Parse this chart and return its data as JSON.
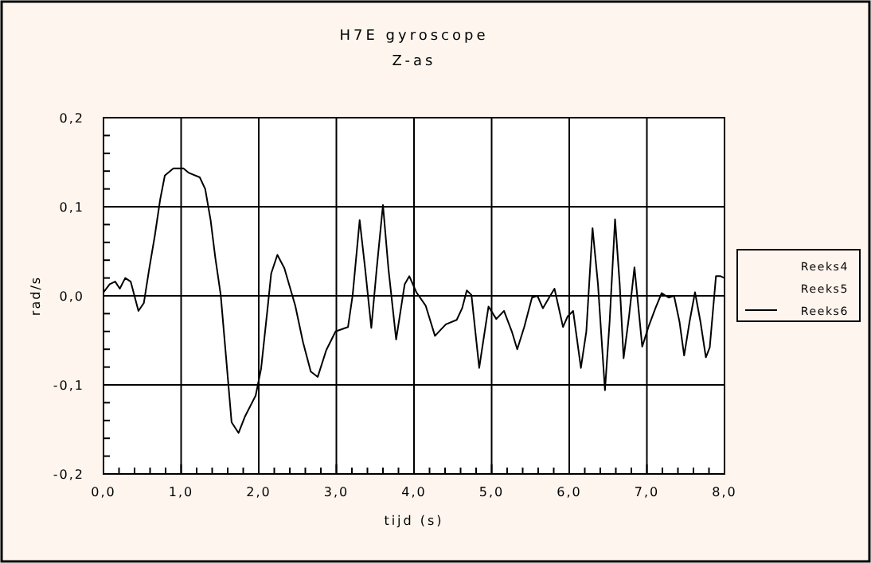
{
  "chart_data": {
    "type": "line",
    "title": "H7E gyroscope",
    "subtitle": "Z-as",
    "xlabel": "tijd (s)",
    "ylabel": "rad/s",
    "xlim": [
      0,
      8
    ],
    "ylim": [
      -0.2,
      0.2
    ],
    "xticks": [
      {
        "value": 0,
        "label": "0,0"
      },
      {
        "value": 0.2,
        "label": null
      },
      {
        "value": 0.4,
        "label": null
      },
      {
        "value": 0.6,
        "label": null
      },
      {
        "value": 0.8,
        "label": null
      },
      {
        "value": 1,
        "label": "1,0"
      },
      {
        "value": 1.2,
        "label": null
      },
      {
        "value": 1.4,
        "label": null
      },
      {
        "value": 1.6,
        "label": null
      },
      {
        "value": 1.8,
        "label": null
      },
      {
        "value": 2,
        "label": "2,0"
      },
      {
        "value": 2.2,
        "label": null
      },
      {
        "value": 2.4,
        "label": null
      },
      {
        "value": 2.6,
        "label": null
      },
      {
        "value": 2.8,
        "label": null
      },
      {
        "value": 3,
        "label": "3,0"
      },
      {
        "value": 3.2,
        "label": null
      },
      {
        "value": 3.4,
        "label": null
      },
      {
        "value": 3.6,
        "label": null
      },
      {
        "value": 3.8,
        "label": null
      },
      {
        "value": 4,
        "label": "4,0"
      },
      {
        "value": 4.2,
        "label": null
      },
      {
        "value": 4.4,
        "label": null
      },
      {
        "value": 4.6,
        "label": null
      },
      {
        "value": 4.8,
        "label": null
      },
      {
        "value": 5,
        "label": "5,0"
      },
      {
        "value": 5.2,
        "label": null
      },
      {
        "value": 5.4,
        "label": null
      },
      {
        "value": 5.6,
        "label": null
      },
      {
        "value": 5.8,
        "label": null
      },
      {
        "value": 6,
        "label": "6,0"
      },
      {
        "value": 6.2,
        "label": null
      },
      {
        "value": 6.4,
        "label": null
      },
      {
        "value": 6.6,
        "label": null
      },
      {
        "value": 6.8,
        "label": null
      },
      {
        "value": 7,
        "label": "7,0"
      },
      {
        "value": 7.2,
        "label": null
      },
      {
        "value": 7.4,
        "label": null
      },
      {
        "value": 7.6,
        "label": null
      },
      {
        "value": 7.8,
        "label": null
      },
      {
        "value": 8,
        "label": "8,0"
      }
    ],
    "yticks": [
      {
        "value": -0.2,
        "label": "-0,2"
      },
      {
        "value": -0.18,
        "label": null
      },
      {
        "value": -0.16,
        "label": null
      },
      {
        "value": -0.14,
        "label": null
      },
      {
        "value": -0.12,
        "label": null
      },
      {
        "value": -0.1,
        "label": "-0,1"
      },
      {
        "value": -0.08,
        "label": null
      },
      {
        "value": -0.06,
        "label": null
      },
      {
        "value": -0.04,
        "label": null
      },
      {
        "value": -0.02,
        "label": null
      },
      {
        "value": 0,
        "label": "0,0"
      },
      {
        "value": 0.02,
        "label": null
      },
      {
        "value": 0.04,
        "label": null
      },
      {
        "value": 0.06,
        "label": null
      },
      {
        "value": 0.08,
        "label": null
      },
      {
        "value": 0.1,
        "label": "0,1"
      },
      {
        "value": 0.12,
        "label": null
      },
      {
        "value": 0.14,
        "label": null
      },
      {
        "value": 0.16,
        "label": null
      },
      {
        "value": 0.18,
        "label": null
      },
      {
        "value": 0.2,
        "label": "0,2"
      }
    ],
    "grid": true,
    "legend": "right",
    "line_style": "solid",
    "series": [
      {
        "name": "Reeks4",
        "color": null
      },
      {
        "name": "Reeks5",
        "color": null
      },
      {
        "name": "Reeks6",
        "color": "#000000",
        "x": [
          0,
          0.08,
          0.15,
          0.21,
          0.28,
          0.35,
          0.45,
          0.52,
          0.59,
          0.66,
          0.73,
          0.79,
          0.9,
          1.03,
          1.1,
          1.24,
          1.31,
          1.38,
          1.44,
          1.51,
          1.58,
          1.65,
          1.74,
          1.82,
          1.96,
          2.03,
          2.11,
          2.16,
          2.24,
          2.33,
          2.47,
          2.57,
          2.67,
          2.76,
          2.87,
          2.99,
          3.15,
          3.21,
          3.3,
          3.37,
          3.45,
          3.52,
          3.6,
          3.67,
          3.77,
          3.88,
          3.94,
          4.03,
          4.15,
          4.27,
          4.41,
          4.55,
          4.62,
          4.68,
          4.74,
          4.84,
          4.89,
          4.96,
          5.06,
          5.16,
          5.26,
          5.33,
          5.42,
          5.52,
          5.59,
          5.66,
          5.74,
          5.81,
          5.92,
          5.98,
          6.05,
          6.15,
          6.22,
          6.3,
          6.37,
          6.46,
          6.52,
          6.59,
          6.65,
          6.7,
          6.77,
          6.84,
          6.94,
          7.02,
          7.11,
          7.19,
          7.28,
          7.35,
          7.42,
          7.48,
          7.55,
          7.62,
          7.69,
          7.76,
          7.81,
          7.89,
          7.95,
          8
        ],
        "values": [
          0.004,
          0.013,
          0.016,
          0.008,
          0.02,
          0.016,
          -0.017,
          -0.008,
          0.031,
          0.067,
          0.108,
          0.135,
          0.143,
          0.143,
          0.138,
          0.133,
          0.12,
          0.085,
          0.043,
          0.001,
          -0.07,
          -0.142,
          -0.154,
          -0.136,
          -0.112,
          -0.082,
          -0.017,
          0.025,
          0.046,
          0.031,
          -0.011,
          -0.052,
          -0.085,
          -0.091,
          -0.061,
          -0.04,
          -0.035,
          0.001,
          0.085,
          0.031,
          -0.036,
          0.031,
          0.102,
          0.031,
          -0.049,
          0.013,
          0.022,
          0.004,
          -0.011,
          -0.045,
          -0.032,
          -0.027,
          -0.014,
          0.006,
          0.001,
          -0.081,
          -0.052,
          -0.012,
          -0.026,
          -0.017,
          -0.04,
          -0.06,
          -0.035,
          -0.002,
          0,
          -0.014,
          -0.002,
          0.008,
          -0.035,
          -0.023,
          -0.017,
          -0.081,
          -0.04,
          0.076,
          0.013,
          -0.106,
          -0.029,
          0.086,
          0.013,
          -0.07,
          -0.023,
          0.032,
          -0.057,
          -0.035,
          -0.014,
          0.003,
          -0.002,
          0,
          -0.029,
          -0.067,
          -0.029,
          0.004,
          -0.029,
          -0.069,
          -0.058,
          0.022,
          0.022,
          0.02
        ]
      }
    ]
  }
}
